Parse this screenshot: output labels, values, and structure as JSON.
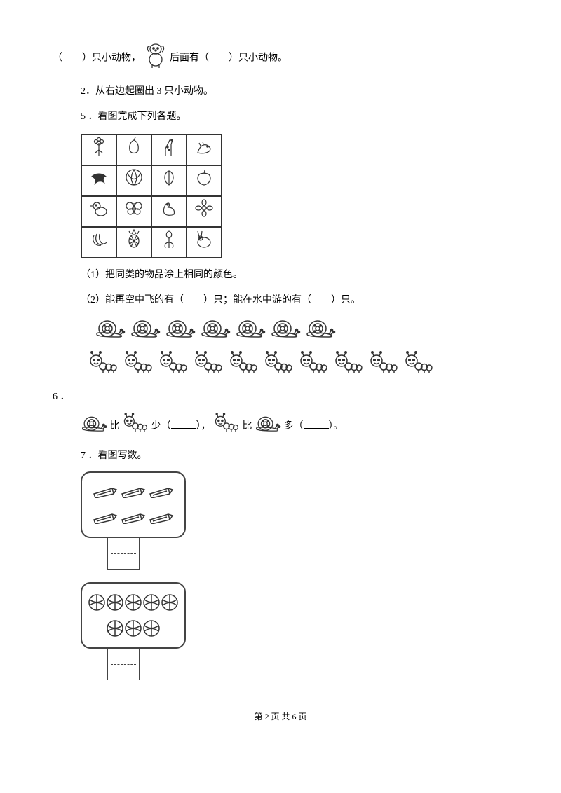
{
  "q_top": {
    "part1": "（　　）只小动物，",
    "part2": "后面有（　　）只小动物。"
  },
  "q2": "2．从右边起圈出 3 只小动物。",
  "q5": "5 ．看图完成下列各题。",
  "q5_1": "（1）把同类的物品涂上相同的颜色。",
  "q5_2": "（2）能再空中飞的有（　　）只；能在水中游的有（　　）只。",
  "q6_num": "6 ．",
  "q6_text_a": "比",
  "q6_text_b": "少（",
  "q6_text_c": "），",
  "q6_text_d": "比",
  "q6_text_e": "多（",
  "q6_text_f": "）。",
  "q7": "7 ．看图写数。",
  "footer": "第 2 页 共 6 页",
  "counts": {
    "snails_row": 7,
    "caterpillars_row": 10,
    "pencils": 6,
    "balls": 8
  },
  "colors": {
    "ink": "#000000",
    "stroke": "#333333",
    "bg": "#ffffff"
  },
  "grid_icons": [
    [
      "flower",
      "pear",
      "giraffe",
      "dragon"
    ],
    [
      "swallow",
      "watermelon",
      "peach",
      "apple"
    ],
    [
      "chick",
      "butterfly",
      "goose",
      "blossom"
    ],
    [
      "bananas",
      "pineapple",
      "iris",
      "rabbit"
    ]
  ]
}
